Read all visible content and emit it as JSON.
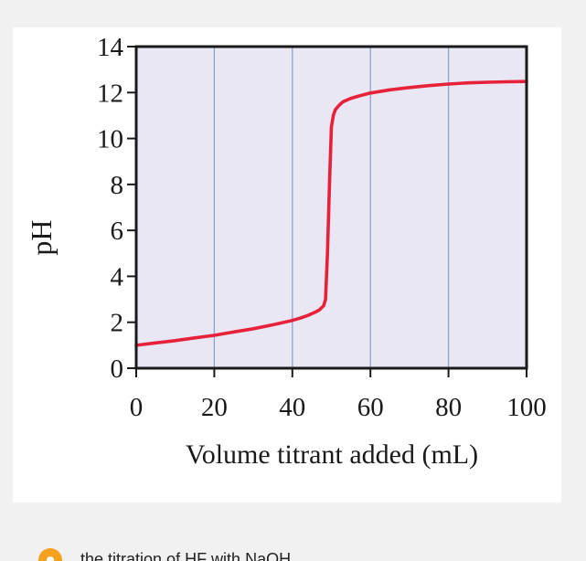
{
  "chart_data": {
    "type": "line",
    "xlabel": "Volume titrant added (mL)",
    "ylabel": "pH",
    "xlim": [
      0,
      100
    ],
    "ylim": [
      0,
      14
    ],
    "x_ticks": [
      0,
      20,
      40,
      60,
      80,
      100
    ],
    "y_ticks": [
      0,
      2,
      4,
      6,
      8,
      10,
      12,
      14
    ],
    "vertical_gridlines_at": [
      20,
      40,
      60,
      80
    ],
    "plot_background": "#e9e7f3",
    "gridline_color": "#8fa3c8",
    "series": [
      {
        "color": "#e8213a",
        "x": [
          0,
          5,
          10,
          15,
          20,
          25,
          30,
          35,
          40,
          42,
          44,
          46,
          47,
          48,
          48.5,
          49,
          49.5,
          50,
          50.5,
          51,
          52,
          53,
          55,
          57,
          60,
          65,
          70,
          75,
          80,
          85,
          90,
          95,
          100
        ],
        "y": [
          1.0,
          1.1,
          1.2,
          1.32,
          1.43,
          1.58,
          1.72,
          1.89,
          2.08,
          2.18,
          2.3,
          2.45,
          2.55,
          2.72,
          3.0,
          5.0,
          8.0,
          10.5,
          11.0,
          11.25,
          11.45,
          11.6,
          11.75,
          11.85,
          11.98,
          12.12,
          12.22,
          12.3,
          12.37,
          12.42,
          12.45,
          12.47,
          12.48
        ]
      }
    ]
  },
  "caption": {
    "text": "the titration of HF with NaOH"
  }
}
